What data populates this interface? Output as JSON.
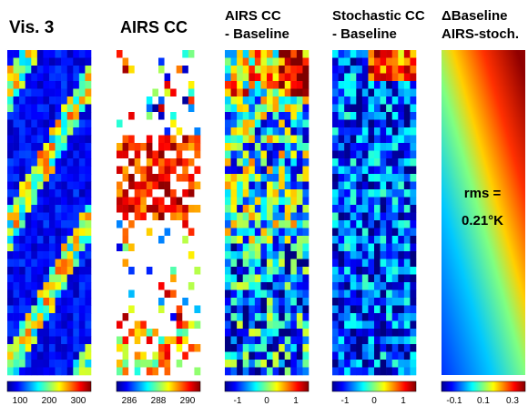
{
  "panels": [
    {
      "title": [
        "Vis. 3"
      ],
      "colorbar_ticks": [
        "100",
        "200",
        "300"
      ]
    },
    {
      "title": [
        "AIRS CC"
      ],
      "colorbar_ticks": [
        "286",
        "288",
        "290"
      ]
    },
    {
      "title": [
        "AIRS CC",
        "- Baseline"
      ],
      "colorbar_ticks": [
        "-1",
        "0",
        "1"
      ]
    },
    {
      "title": [
        "Stochastic CC",
        "- Baseline"
      ],
      "colorbar_ticks": [
        "-1",
        "0",
        "1"
      ]
    },
    {
      "title": [
        "ΔBaseline",
        "AIRS-stoch."
      ],
      "colorbar_ticks": [
        "-0.1",
        "0.1",
        "0.3"
      ]
    }
  ],
  "annotation": [
    "rms =",
    "0.21°K"
  ]
}
